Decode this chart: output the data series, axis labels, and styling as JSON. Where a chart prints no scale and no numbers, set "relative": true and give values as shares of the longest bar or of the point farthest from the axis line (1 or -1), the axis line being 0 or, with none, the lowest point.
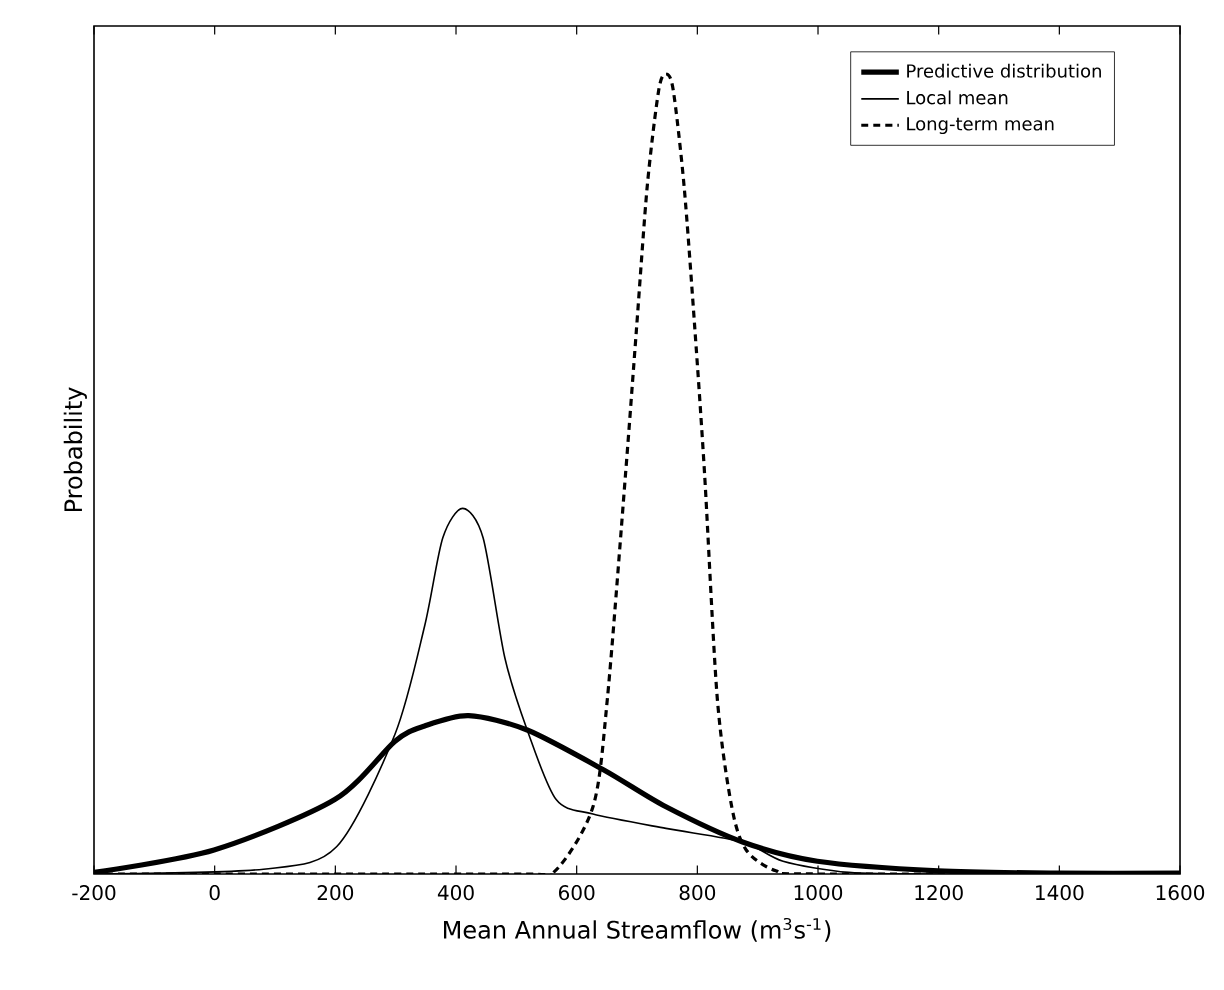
{
  "chart_data": {
    "type": "line",
    "xlabel": "Mean Annual Streamflow (m$^{3}$s$^{-1}$)",
    "ylabel": "Probability",
    "relative": true,
    "xlim": [
      -200,
      1600
    ],
    "xticks": [
      -200,
      0,
      200,
      400,
      600,
      800,
      1000,
      1200,
      1400,
      1600
    ],
    "legend": "top right",
    "marker": "none",
    "series": [
      {
        "name": "Predictive distribution",
        "color": "#000000",
        "line_style": "solid",
        "x": [
          -200,
          -1,
          199,
          299,
          348,
          421,
          518,
          645,
          748,
          875,
          999,
          1199,
          1400,
          1600
        ],
        "values": [
          0.002,
          0.03,
          0.093,
          0.166,
          0.185,
          0.198,
          0.18,
          0.13,
          0.084,
          0.04,
          0.016,
          0.004,
          0.001,
          0.001
        ]
      },
      {
        "name": "Local mean",
        "color": "#000000",
        "line_style": "solid",
        "x": [
          -200,
          81,
          202,
          299,
          348,
          378,
          411,
          445,
          481,
          518,
          566,
          627,
          748,
          875,
          942,
          1051,
          1200
        ],
        "values": [
          0,
          0.006,
          0.034,
          0.175,
          0.31,
          0.42,
          0.457,
          0.42,
          0.27,
          0.18,
          0.093,
          0.075,
          0.057,
          0.04,
          0.016,
          0.002,
          0
        ]
      },
      {
        "name": "Long-term mean",
        "color": "#000000",
        "line_style": "dashed",
        "x": [
          -200,
          500,
          563,
          627,
          651,
          681,
          699,
          717,
          736,
          748,
          760,
          778,
          796,
          812,
          833,
          857,
          881,
          930,
          1000,
          1600
        ],
        "values": [
          0,
          0,
          0.003,
          0.084,
          0.22,
          0.5,
          0.68,
          0.86,
          0.98,
          1.0,
          0.98,
          0.86,
          0.68,
          0.5,
          0.22,
          0.084,
          0.03,
          0.004,
          0,
          0
        ]
      }
    ]
  }
}
